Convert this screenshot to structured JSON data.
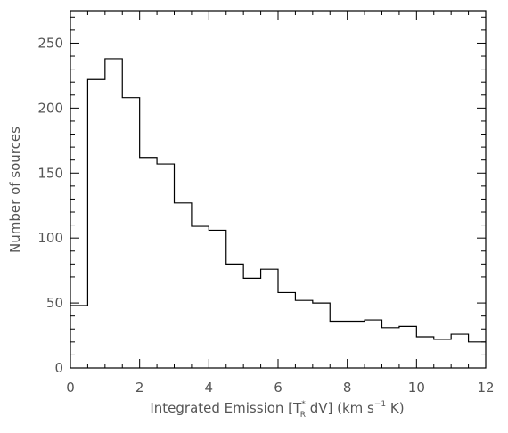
{
  "chart_data": {
    "type": "histogram",
    "xlabel": "Integrated Emission [T",
    "xlabel_sup": "*",
    "xlabel_sub": "R",
    "xlabel_mid": " dV] (km s",
    "xlabel_exp": "−1",
    "xlabel_end": " K)",
    "ylabel": "Number of sources",
    "xlim": [
      0,
      12
    ],
    "ylim": [
      0,
      275
    ],
    "x_ticks": [
      0,
      2,
      4,
      6,
      8,
      10,
      12
    ],
    "x_tick_labels": [
      "0",
      "2",
      "4",
      "6",
      "8",
      "10",
      "12"
    ],
    "y_ticks": [
      0,
      50,
      100,
      150,
      200,
      250
    ],
    "y_tick_labels": [
      "0",
      "50",
      "100",
      "150",
      "200",
      "250"
    ],
    "x_minor_step": 0.5,
    "y_minor_step": 10,
    "grid": false,
    "bin_width": 0.5,
    "bin_starts": [
      0,
      0.5,
      1.0,
      1.5,
      2.0,
      2.5,
      3.0,
      3.5,
      4.0,
      4.5,
      5.0,
      5.5,
      6.0,
      6.5,
      7.0,
      7.5,
      8.0,
      8.5,
      9.0,
      9.5,
      10.0,
      10.5,
      11.0,
      11.5
    ],
    "counts": [
      48,
      222,
      238,
      208,
      162,
      157,
      127,
      109,
      106,
      80,
      69,
      76,
      58,
      52,
      50,
      36,
      36,
      37,
      31,
      32,
      24,
      22,
      26,
      20
    ]
  }
}
